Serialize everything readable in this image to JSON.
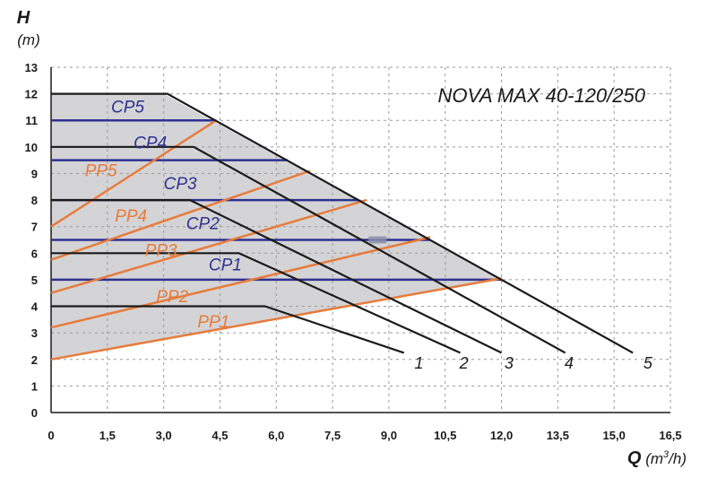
{
  "chart_data": {
    "type": "line",
    "title": "NOVA MAX 40-120/250",
    "ylabel": "H",
    "yunit": "(m)",
    "xlabel": "Q",
    "xunit_pre": " (m",
    "xunit_sup": "3",
    "xunit_post": "/h)",
    "xlim": [
      0,
      16.5
    ],
    "ylim": [
      0,
      13
    ],
    "xticks": [
      "0",
      "1,5",
      "3,0",
      "4,5",
      "6,0",
      "7,5",
      "9,0",
      "10,5",
      "12,0",
      "13,5",
      "15,0",
      "16,5"
    ],
    "yticks": [
      "0",
      "1",
      "2",
      "3",
      "4",
      "5",
      "6",
      "7",
      "8",
      "9",
      "10",
      "11",
      "12",
      "13"
    ],
    "grid": true,
    "colors": {
      "speed": "#1a1a1a",
      "cp": "#2e3192",
      "pp": "#e87b3c",
      "area": "#d4d4d6"
    },
    "operating_area": [
      [
        0,
        5.5
      ],
      [
        0,
        12
      ],
      [
        3,
        12
      ],
      [
        12,
        5
      ],
      [
        0,
        2
      ]
    ],
    "speed_curves": [
      {
        "name": "1",
        "points": [
          [
            0,
            4
          ],
          [
            5.7,
            4
          ],
          [
            9.4,
            2.25
          ]
        ]
      },
      {
        "name": "2",
        "points": [
          [
            0,
            6
          ],
          [
            5,
            6
          ],
          [
            10.9,
            2.25
          ]
        ]
      },
      {
        "name": "3",
        "points": [
          [
            0,
            8
          ],
          [
            3.7,
            8
          ],
          [
            12,
            2.25
          ]
        ]
      },
      {
        "name": "4",
        "points": [
          [
            0,
            10
          ],
          [
            3.8,
            10
          ],
          [
            13.7,
            2.25
          ]
        ]
      },
      {
        "name": "5",
        "points": [
          [
            0,
            12
          ],
          [
            3.1,
            12
          ],
          [
            15.5,
            2.25
          ]
        ]
      }
    ],
    "speed_labels": [
      {
        "text": "1",
        "at": [
          9.8,
          1.65
        ]
      },
      {
        "text": "2",
        "at": [
          11.0,
          1.65
        ]
      },
      {
        "text": "3",
        "at": [
          12.2,
          1.65
        ]
      },
      {
        "text": "4",
        "at": [
          13.8,
          1.65
        ]
      },
      {
        "text": "5",
        "at": [
          15.9,
          1.65
        ]
      }
    ],
    "cp_lines": [
      {
        "name": "CP5",
        "y": 11,
        "xmax": 4.4,
        "label_at": [
          1.6,
          11.3
        ]
      },
      {
        "name": "CP4",
        "y": 9.5,
        "xmax": 6.3,
        "label_at": [
          2.2,
          9.95
        ]
      },
      {
        "name": "CP3",
        "y": 8,
        "xmax": 8.2,
        "label_at": [
          3.0,
          8.4
        ]
      },
      {
        "name": "CP2",
        "y": 6.5,
        "xmax": 10.1,
        "label_at": [
          3.6,
          6.9
        ]
      },
      {
        "name": "CP1",
        "y": 5,
        "xmax": 12,
        "label_at": [
          4.2,
          5.35
        ]
      }
    ],
    "pp_lines": [
      {
        "name": "PP5",
        "points": [
          [
            0,
            7
          ],
          [
            4.4,
            11
          ]
        ],
        "label_at": [
          0.9,
          8.9
        ]
      },
      {
        "name": "PP4",
        "points": [
          [
            0,
            5.75
          ],
          [
            6.9,
            9.1
          ]
        ],
        "label_at": [
          1.7,
          7.2
        ]
      },
      {
        "name": "PP3",
        "points": [
          [
            0,
            4.5
          ],
          [
            8.4,
            8
          ]
        ],
        "label_at": [
          2.5,
          5.9
        ]
      },
      {
        "name": "PP2",
        "points": [
          [
            0,
            3.2
          ],
          [
            10.1,
            6.6
          ]
        ],
        "label_at": [
          2.8,
          4.15
        ]
      },
      {
        "name": "PP1",
        "points": [
          [
            0,
            2
          ],
          [
            12,
            5.05
          ]
        ],
        "label_at": [
          3.9,
          3.2
        ]
      }
    ],
    "point_marker": {
      "at": [
        8.7,
        6.5
      ]
    }
  }
}
